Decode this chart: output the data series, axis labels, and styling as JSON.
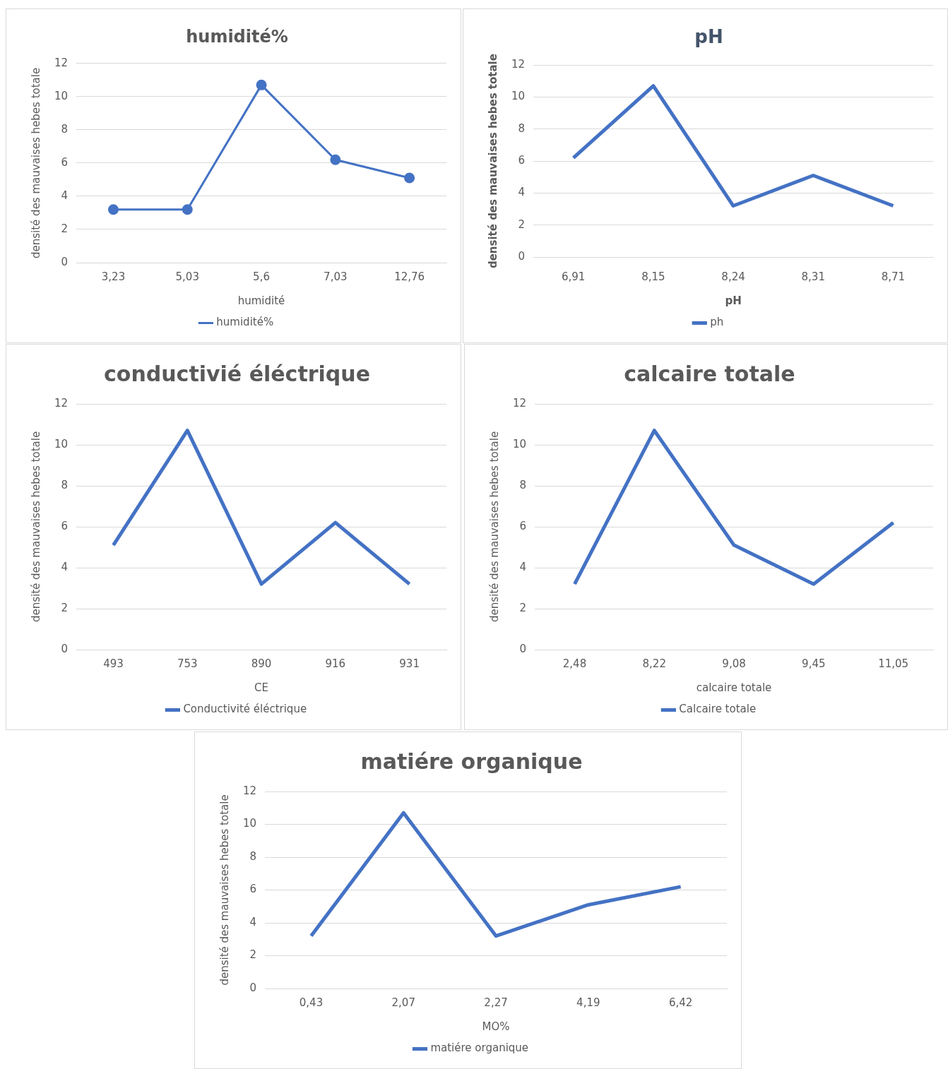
{
  "chart_data": [
    {
      "type": "line",
      "title": "humidité%",
      "xlabel": "humidité",
      "ylabel": "densité des mauvaises hebes totale",
      "categories": [
        "3,23",
        "5,03",
        "5,6",
        "7,03",
        "12,76"
      ],
      "series": [
        {
          "name": "humidité%",
          "color": "#4472c4",
          "values": [
            3.2,
            3.2,
            10.7,
            6.2,
            5.1
          ]
        }
      ],
      "ylim": [
        0,
        12
      ],
      "yticks": [
        0,
        2,
        4,
        6,
        8,
        10,
        12
      ],
      "grid": "y",
      "legend": "bottom",
      "marker": "circle"
    },
    {
      "type": "line",
      "title": "pH",
      "xlabel": "pH",
      "ylabel": "densité des mauvaises hebes totale",
      "categories": [
        "6,91",
        "8,15",
        "8,24",
        "8,31",
        "8,71"
      ],
      "series": [
        {
          "name": "ph",
          "color": "#4472c4",
          "values": [
            6.2,
            10.7,
            3.2,
            5.1,
            3.2
          ]
        }
      ],
      "ylim": [
        0,
        12
      ],
      "yticks": [
        0,
        2,
        4,
        6,
        8,
        10,
        12
      ],
      "grid": "y",
      "legend": "bottom"
    },
    {
      "type": "line",
      "title": "conductivié éléctrique",
      "xlabel": "CE",
      "ylabel": "densité des mauvaises hebes totale",
      "categories": [
        "493",
        "753",
        "890",
        "916",
        "931"
      ],
      "series": [
        {
          "name": "Conductivité éléctrique",
          "color": "#4472c4",
          "values": [
            5.1,
            10.7,
            3.2,
            6.2,
            3.2
          ]
        }
      ],
      "ylim": [
        0,
        12
      ],
      "yticks": [
        0,
        2,
        4,
        6,
        8,
        10,
        12
      ],
      "grid": "y",
      "legend": "bottom"
    },
    {
      "type": "line",
      "title": "calcaire totale",
      "xlabel": "calcaire totale",
      "ylabel": "densité des mauvaises hebes totale",
      "categories": [
        "2,48",
        "8,22",
        "9,08",
        "9,45",
        "11,05"
      ],
      "series": [
        {
          "name": "Calcaire totale",
          "color": "#4472c4",
          "values": [
            3.2,
            10.7,
            5.1,
            3.2,
            6.2
          ]
        }
      ],
      "ylim": [
        0,
        12
      ],
      "yticks": [
        0,
        2,
        4,
        6,
        8,
        10,
        12
      ],
      "grid": "y",
      "legend": "bottom"
    },
    {
      "type": "line",
      "title": "matiére organique",
      "xlabel": "MO%",
      "ylabel": "densité des mauvaises hebes totale",
      "categories": [
        "0,43",
        "2,07",
        "2,27",
        "4,19",
        "6,42"
      ],
      "series": [
        {
          "name": "matiére organique",
          "color": "#4472c4",
          "values": [
            3.2,
            10.7,
            3.2,
            5.1,
            6.2
          ]
        }
      ],
      "ylim": [
        0,
        12
      ],
      "yticks": [
        0,
        2,
        4,
        6,
        8,
        10,
        12
      ],
      "grid": "y",
      "legend": "bottom"
    }
  ]
}
